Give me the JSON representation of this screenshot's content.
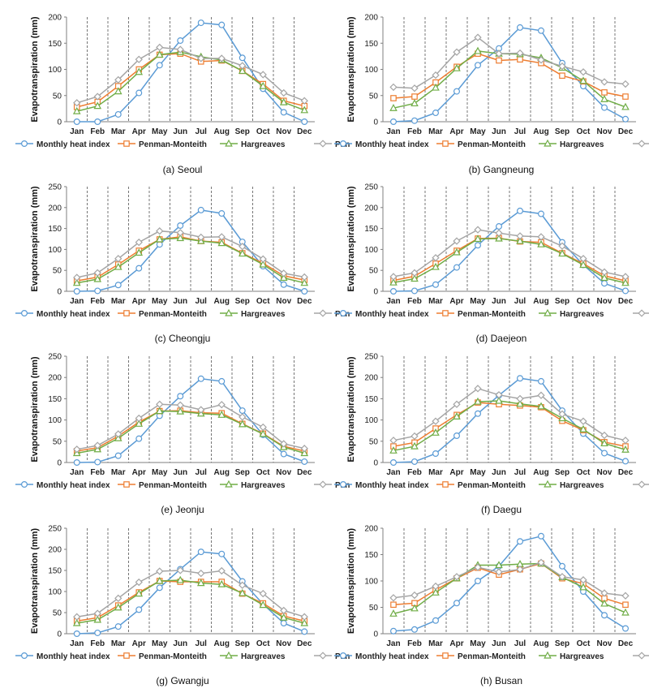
{
  "figure": {
    "ylabel": "Evapotranspiration (mm)",
    "months": [
      "Jan",
      "Feb",
      "Mar",
      "Apr",
      "May",
      "Jun",
      "Jul",
      "Aug",
      "Sep",
      "Oct",
      "Nov",
      "Dec"
    ],
    "legend": [
      "Monthly heat index",
      "Penman-Monteith",
      "Hargreaves",
      "Pan"
    ],
    "series_colors": {
      "Monthly heat index": "#5B9BD5",
      "Penman-Monteith": "#ED7D31",
      "Hargreaves": "#70AD47",
      "Pan": "#A5A5A5"
    }
  },
  "chart_data": [
    {
      "type": "line",
      "caption": "(a) Seoul",
      "ylabel": "Evapotranspiration (mm)",
      "ylim": [
        0,
        200
      ],
      "yticks": [
        0,
        50,
        100,
        150,
        200
      ],
      "categories": [
        "Jan",
        "Feb",
        "Mar",
        "Apr",
        "May",
        "Jun",
        "Jul",
        "Aug",
        "Sep",
        "Oct",
        "Nov",
        "Dec"
      ],
      "series": [
        {
          "name": "Monthly heat index",
          "values": [
            0,
            0,
            14,
            55,
            108,
            155,
            189,
            185,
            122,
            63,
            18,
            0
          ]
        },
        {
          "name": "Penman-Monteith",
          "values": [
            28,
            38,
            68,
            100,
            128,
            130,
            115,
            117,
            97,
            72,
            40,
            30
          ]
        },
        {
          "name": "Hargreaves",
          "values": [
            20,
            30,
            58,
            95,
            128,
            133,
            124,
            118,
            97,
            68,
            37,
            22
          ]
        },
        {
          "name": "Pan",
          "values": [
            36,
            48,
            80,
            119,
            142,
            138,
            121,
            121,
            107,
            90,
            55,
            40
          ]
        }
      ]
    },
    {
      "type": "line",
      "caption": "(b) Gangneung",
      "ylabel": "Evapotranspiration (mm)",
      "ylim": [
        0,
        200
      ],
      "yticks": [
        0,
        50,
        100,
        150,
        200
      ],
      "categories": [
        "Jan",
        "Feb",
        "Mar",
        "Apr",
        "May",
        "Jun",
        "Jul",
        "Aug",
        "Sep",
        "Oct",
        "Nov",
        "Dec"
      ],
      "series": [
        {
          "name": "Monthly heat index",
          "values": [
            0,
            2,
            17,
            58,
            108,
            140,
            180,
            174,
            112,
            68,
            27,
            5
          ]
        },
        {
          "name": "Penman-Monteith",
          "values": [
            45,
            48,
            75,
            105,
            130,
            117,
            119,
            112,
            88,
            77,
            56,
            48
          ]
        },
        {
          "name": "Hargreaves",
          "values": [
            26,
            35,
            65,
            102,
            135,
            130,
            129,
            122,
            103,
            78,
            43,
            28
          ]
        },
        {
          "name": "Pan",
          "values": [
            66,
            64,
            89,
            133,
            161,
            130,
            131,
            118,
            106,
            95,
            76,
            72
          ]
        }
      ]
    },
    {
      "type": "line",
      "caption": "(c) Cheongju",
      "ylabel": "Evapotranspiration (mm)",
      "ylim": [
        0,
        250
      ],
      "yticks": [
        0,
        50,
        100,
        150,
        200,
        250
      ],
      "categories": [
        "Jan",
        "Feb",
        "Mar",
        "Apr",
        "May",
        "Jun",
        "Jul",
        "Aug",
        "Sep",
        "Oct",
        "Nov",
        "Dec"
      ],
      "series": [
        {
          "name": "Monthly heat index",
          "values": [
            0,
            1,
            15,
            55,
            112,
            157,
            194,
            186,
            118,
            60,
            16,
            0
          ]
        },
        {
          "name": "Penman-Monteith",
          "values": [
            25,
            34,
            64,
            97,
            124,
            130,
            120,
            117,
            91,
            67,
            37,
            27
          ]
        },
        {
          "name": "Hargreaves",
          "values": [
            20,
            29,
            58,
            92,
            124,
            127,
            120,
            115,
            90,
            64,
            32,
            20
          ]
        },
        {
          "name": "Pan",
          "values": [
            33,
            44,
            78,
            117,
            144,
            140,
            129,
            130,
            107,
            77,
            43,
            34
          ]
        }
      ]
    },
    {
      "type": "line",
      "caption": "(d) Daejeon",
      "ylabel": "Evapotranspiration (mm)",
      "ylim": [
        0,
        250
      ],
      "yticks": [
        0,
        50,
        100,
        150,
        200,
        250
      ],
      "categories": [
        "Jan",
        "Feb",
        "Mar",
        "Apr",
        "May",
        "Jun",
        "Jul",
        "Aug",
        "Sep",
        "Oct",
        "Nov",
        "Dec"
      ],
      "series": [
        {
          "name": "Monthly heat index",
          "values": [
            0,
            1,
            16,
            57,
            110,
            155,
            192,
            185,
            117,
            63,
            19,
            1
          ]
        },
        {
          "name": "Penman-Monteith",
          "values": [
            26,
            36,
            66,
            97,
            126,
            127,
            119,
            117,
            91,
            66,
            37,
            25
          ]
        },
        {
          "name": "Hargreaves",
          "values": [
            21,
            30,
            58,
            93,
            125,
            126,
            120,
            112,
            90,
            63,
            32,
            20
          ]
        },
        {
          "name": "Pan",
          "values": [
            35,
            44,
            80,
            120,
            147,
            139,
            132,
            130,
            108,
            78,
            46,
            35
          ]
        }
      ]
    },
    {
      "type": "line",
      "caption": "(e) Jeonju",
      "ylabel": "Evapotranspiration (mm)",
      "ylim": [
        0,
        250
      ],
      "yticks": [
        0,
        50,
        100,
        150,
        200,
        250
      ],
      "categories": [
        "Jan",
        "Feb",
        "Mar",
        "Apr",
        "May",
        "Jun",
        "Jul",
        "Aug",
        "Sep",
        "Oct",
        "Nov",
        "Dec"
      ],
      "series": [
        {
          "name": "Monthly heat index",
          "values": [
            0,
            1,
            16,
            56,
            110,
            156,
            197,
            191,
            122,
            65,
            20,
            2
          ]
        },
        {
          "name": "Penman-Monteith",
          "values": [
            27,
            35,
            62,
            95,
            121,
            122,
            117,
            116,
            91,
            68,
            38,
            27
          ]
        },
        {
          "name": "Hargreaves",
          "values": [
            22,
            31,
            57,
            91,
            121,
            120,
            115,
            112,
            90,
            67,
            36,
            22
          ]
        },
        {
          "name": "Pan",
          "values": [
            31,
            40,
            67,
            104,
            137,
            135,
            124,
            136,
            107,
            83,
            44,
            33
          ]
        }
      ]
    },
    {
      "type": "line",
      "caption": "(f) Daegu",
      "ylabel": "Evapotranspiration (mm)",
      "ylim": [
        0,
        250
      ],
      "yticks": [
        0,
        50,
        100,
        150,
        200,
        250
      ],
      "categories": [
        "Jan",
        "Feb",
        "Mar",
        "Apr",
        "May",
        "Jun",
        "Jul",
        "Aug",
        "Sep",
        "Oct",
        "Nov",
        "Dec"
      ],
      "series": [
        {
          "name": "Monthly heat index",
          "values": [
            0,
            2,
            21,
            63,
            115,
            158,
            198,
            191,
            122,
            68,
            22,
            3
          ]
        },
        {
          "name": "Penman-Monteith",
          "values": [
            38,
            47,
            80,
            112,
            141,
            137,
            134,
            130,
            98,
            76,
            48,
            38
          ]
        },
        {
          "name": "Hargreaves",
          "values": [
            28,
            38,
            70,
            108,
            143,
            145,
            138,
            132,
            104,
            78,
            45,
            30
          ]
        },
        {
          "name": "Pan",
          "values": [
            52,
            62,
            97,
            137,
            174,
            159,
            150,
            158,
            114,
            97,
            64,
            52
          ]
        }
      ]
    },
    {
      "type": "line",
      "caption": "(g) Gwangju",
      "ylabel": "Evapotranspiration (mm)",
      "ylim": [
        0,
        250
      ],
      "yticks": [
        0,
        50,
        100,
        150,
        200,
        250
      ],
      "categories": [
        "Jan",
        "Feb",
        "Mar",
        "Apr",
        "May",
        "Jun",
        "Jul",
        "Aug",
        "Sep",
        "Oct",
        "Nov",
        "Dec"
      ],
      "series": [
        {
          "name": "Monthly heat index",
          "values": [
            0,
            2,
            17,
            57,
            109,
            153,
            194,
            189,
            124,
            70,
            25,
            5
          ]
        },
        {
          "name": "Penman-Monteith",
          "values": [
            30,
            38,
            67,
            98,
            125,
            123,
            123,
            123,
            95,
            72,
            42,
            30
          ]
        },
        {
          "name": "Hargreaves",
          "values": [
            25,
            33,
            62,
            95,
            125,
            127,
            120,
            117,
            96,
            68,
            38,
            25
          ]
        },
        {
          "name": "Pan",
          "values": [
            40,
            48,
            84,
            122,
            148,
            150,
            143,
            149,
            115,
            95,
            55,
            40
          ]
        }
      ]
    },
    {
      "type": "line",
      "caption": "(h) Busan",
      "ylabel": "Evapotranspiration (mm)",
      "ylim": [
        0,
        200
      ],
      "yticks": [
        0,
        50,
        100,
        150,
        200
      ],
      "categories": [
        "Jan",
        "Feb",
        "Mar",
        "Apr",
        "May",
        "Jun",
        "Jul",
        "Aug",
        "Sep",
        "Oct",
        "Nov",
        "Dec"
      ],
      "series": [
        {
          "name": "Monthly heat index",
          "values": [
            5,
            8,
            25,
            58,
            100,
            128,
            175,
            185,
            128,
            80,
            35,
            10
          ]
        },
        {
          "name": "Penman-Monteith",
          "values": [
            55,
            58,
            83,
            105,
            125,
            112,
            122,
            133,
            105,
            95,
            67,
            55
          ]
        },
        {
          "name": "Hargreaves",
          "values": [
            38,
            48,
            78,
            105,
            130,
            130,
            132,
            133,
            107,
            88,
            57,
            40
          ]
        },
        {
          "name": "Pan",
          "values": [
            68,
            73,
            90,
            108,
            126,
            117,
            122,
            135,
            108,
            102,
            77,
            72
          ]
        }
      ]
    }
  ]
}
